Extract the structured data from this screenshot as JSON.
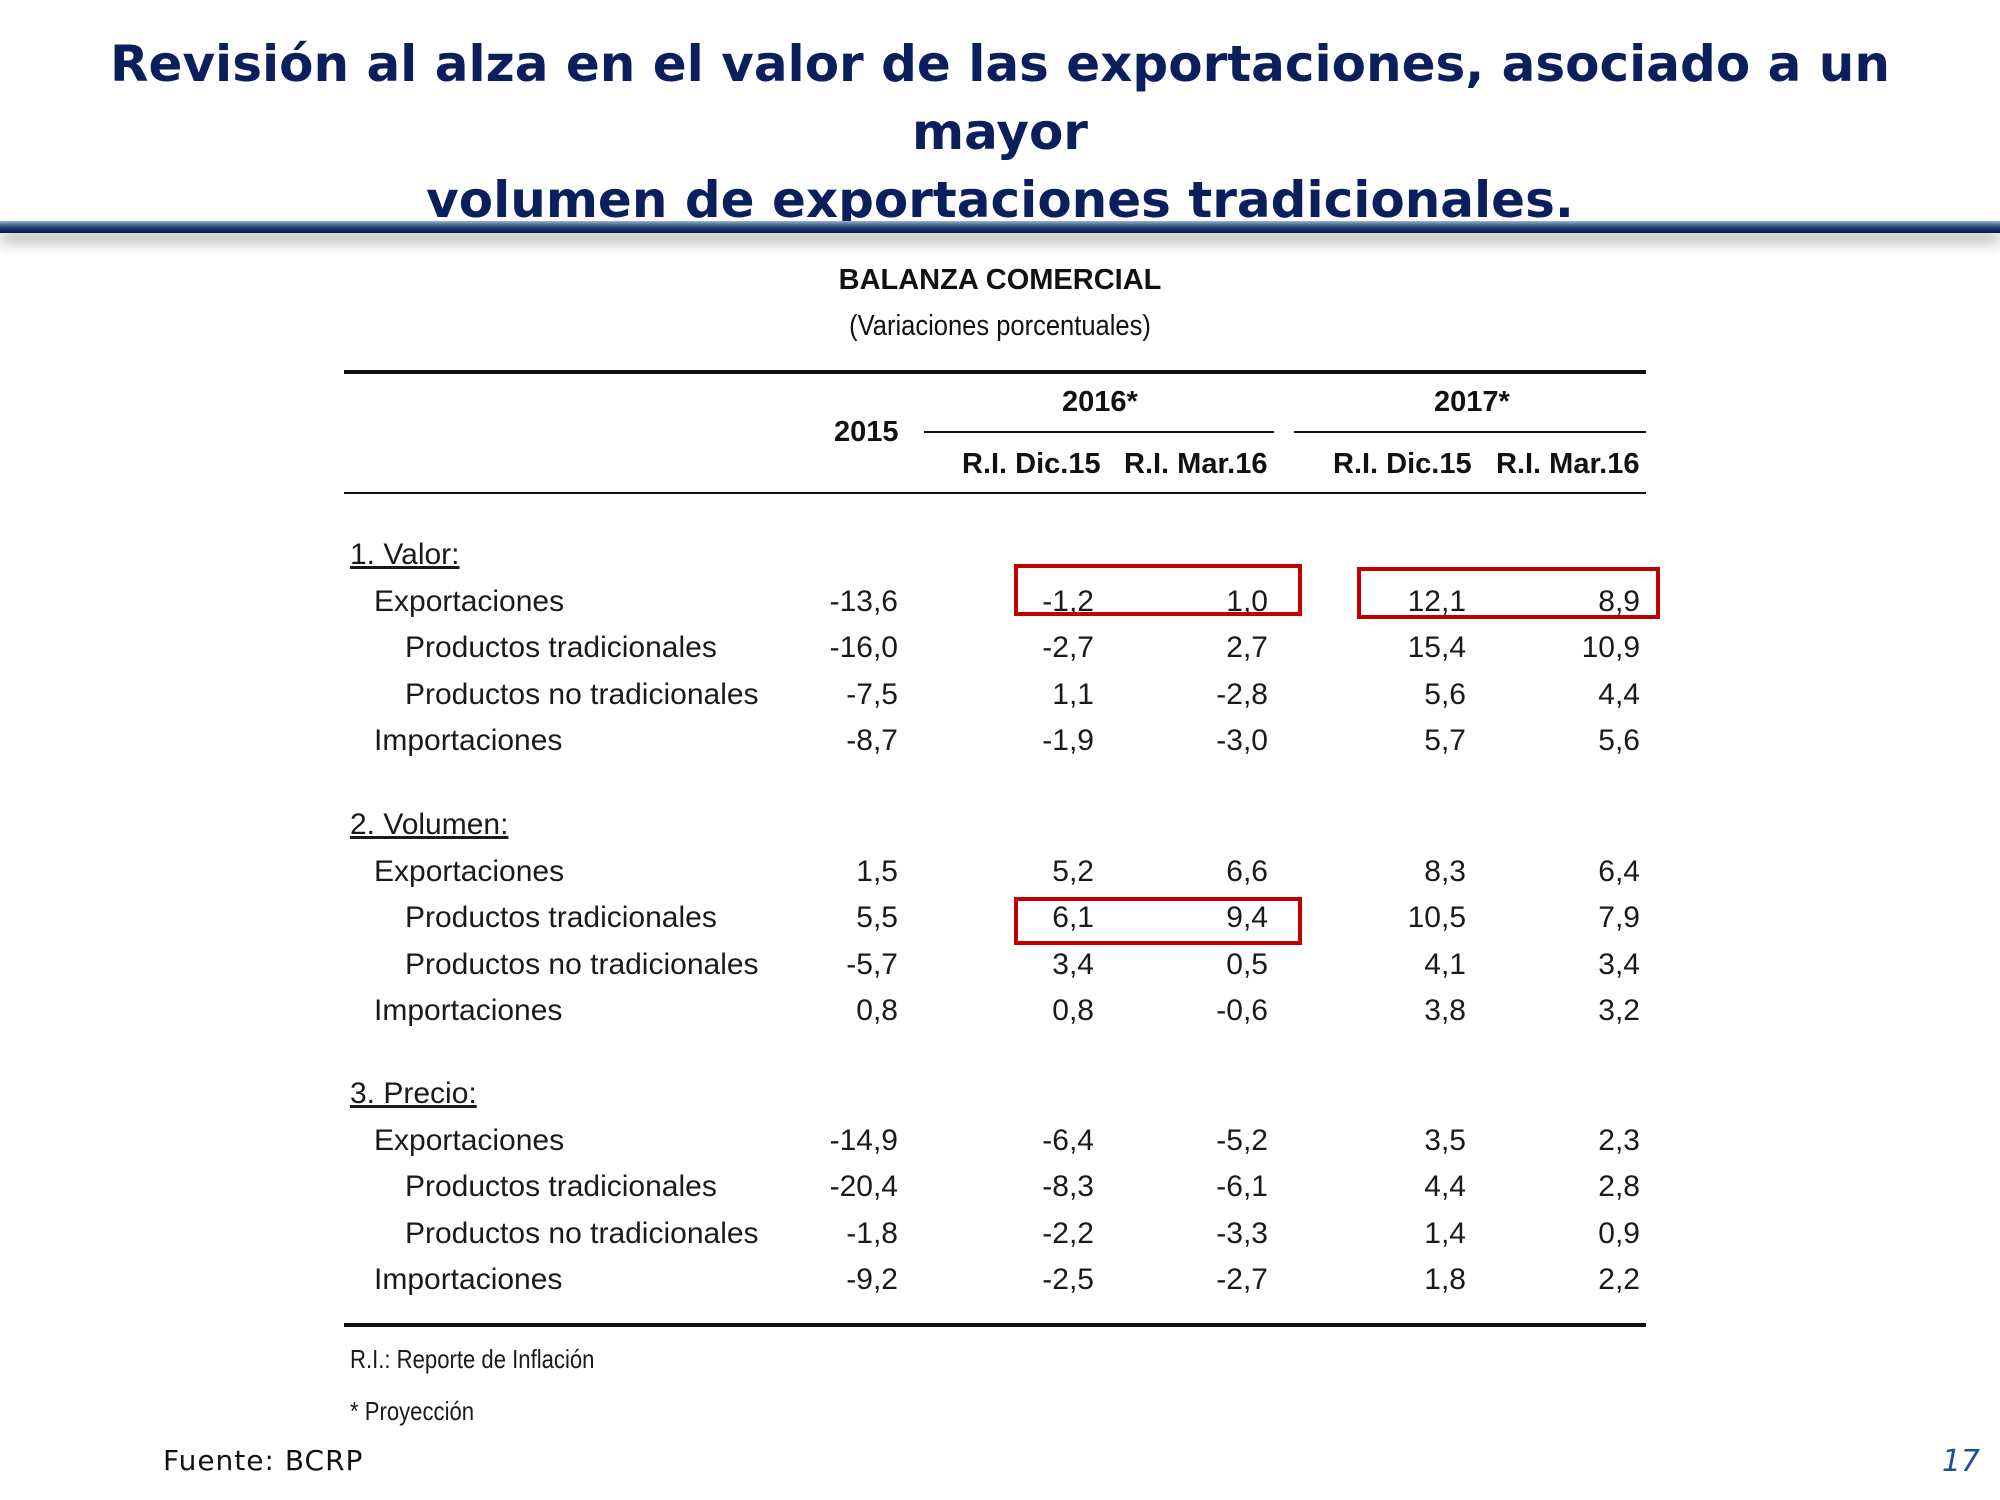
{
  "slide": {
    "title_line1": "Revisión al alza en el valor de las exportaciones, asociado a un mayor",
    "title_line2": "volumen de exportaciones tradicionales.",
    "page_number": "17",
    "source": "Fuente: BCRP"
  },
  "table": {
    "title": "BALANZA COMERCIAL",
    "subtitle": "(Variaciones porcentuales)",
    "headers": {
      "col_2015": "2015",
      "group_2016": "2016*",
      "group_2017": "2017*",
      "sub_2016_a": "R.I. Dic.15",
      "sub_2016_b": "R.I. Mar.16",
      "sub_2017_a": "R.I. Dic.15",
      "sub_2017_b": "R.I. Mar.16"
    },
    "sections": [
      {
        "label": "1. Valor:",
        "rows": [
          {
            "label": "Exportaciones",
            "values": [
              "-13,6",
              "-1,2",
              "1,0",
              "12,1",
              "8,9"
            ]
          },
          {
            "label": "Productos tradicionales",
            "values": [
              "-16,0",
              "-2,7",
              "2,7",
              "15,4",
              "10,9"
            ]
          },
          {
            "label": "Productos no tradicionales",
            "values": [
              "-7,5",
              "1,1",
              "-2,8",
              "5,6",
              "4,4"
            ]
          },
          {
            "label": "Importaciones",
            "values": [
              "-8,7",
              "-1,9",
              "-3,0",
              "5,7",
              "5,6"
            ]
          }
        ]
      },
      {
        "label": "2. Volumen:",
        "rows": [
          {
            "label": "Exportaciones",
            "values": [
              "1,5",
              "5,2",
              "6,6",
              "8,3",
              "6,4"
            ]
          },
          {
            "label": "Productos tradicionales",
            "values": [
              "5,5",
              "6,1",
              "9,4",
              "10,5",
              "7,9"
            ]
          },
          {
            "label": "Productos no tradicionales",
            "values": [
              "-5,7",
              "3,4",
              "0,5",
              "4,1",
              "3,4"
            ]
          },
          {
            "label": "Importaciones",
            "values": [
              "0,8",
              "0,8",
              "-0,6",
              "3,8",
              "3,2"
            ]
          }
        ]
      },
      {
        "label": "3. Precio:",
        "rows": [
          {
            "label": "Exportaciones",
            "values": [
              "-14,9",
              "-6,4",
              "-5,2",
              "3,5",
              "2,3"
            ]
          },
          {
            "label": "Productos tradicionales",
            "values": [
              "-20,4",
              "-8,3",
              "-6,1",
              "4,4",
              "2,8"
            ]
          },
          {
            "label": "Productos no tradicionales",
            "values": [
              "-1,8",
              "-2,2",
              "-3,3",
              "1,4",
              "0,9"
            ]
          },
          {
            "label": "Importaciones",
            "values": [
              "-9,2",
              "-2,5",
              "-2,7",
              "1,8",
              "2,2"
            ]
          }
        ]
      }
    ],
    "notes": {
      "abbrev": "R.I.: Reporte de Inflación",
      "projection": "* Proyección"
    },
    "highlight_color": "#c00000"
  }
}
